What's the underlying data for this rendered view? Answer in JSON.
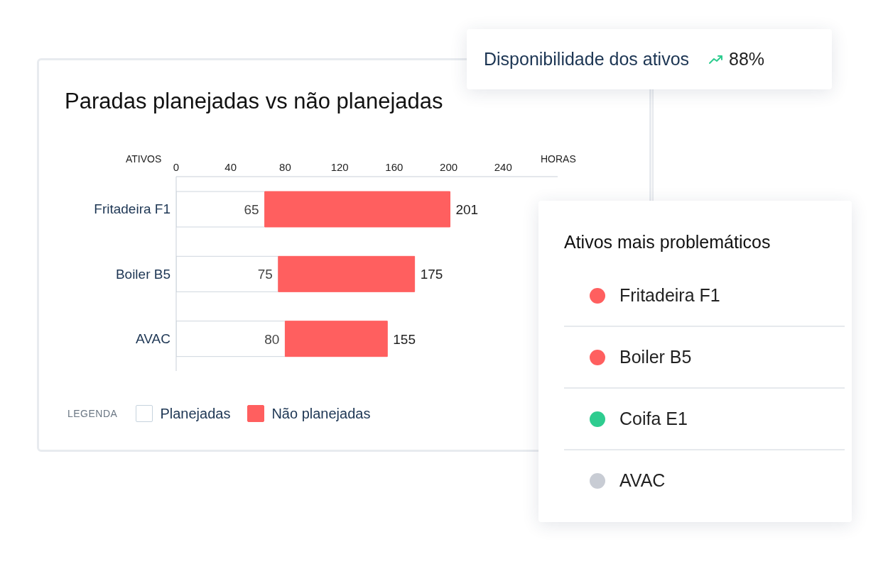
{
  "chart_data": [
    {
      "type": "bar",
      "title": "Paradas planejadas vs não planejadas",
      "orientation": "horizontal",
      "stacked": true,
      "categories": [
        "Fritadeira F1",
        "Boiler B5",
        "AVAC"
      ],
      "series": [
        {
          "name": "Planejadas",
          "color": "#ffffff",
          "values": [
            65,
            75,
            80
          ],
          "value_labels": [
            "65",
            "75",
            "80"
          ]
        },
        {
          "name": "Não planejadas",
          "color": "#ff5f5f",
          "values": [
            136,
            100,
            75
          ]
        }
      ],
      "totals": [
        "201",
        "175",
        "155"
      ],
      "xlabel": "HORAS",
      "ylabel": "ATIVOS",
      "legend_title": "LEGENDA",
      "legend": "bottom left",
      "xlim": [
        0,
        280
      ],
      "xticks": [
        0,
        40,
        80,
        120,
        160,
        200,
        240
      ],
      "grid": false
    },
    {
      "type": "other",
      "title": "Disponibilidade dos ativos",
      "annotations": [
        "88%"
      ]
    },
    {
      "type": "other",
      "title": "Ativos mais problemáticos",
      "categories": [
        "Fritadeira F1",
        "Boiler B5",
        "Coifa E1",
        "AVAC"
      ],
      "colors": [
        "#ff5f5f",
        "#ff5f5f",
        "#2ecc8f",
        "#c8ccd4"
      ]
    }
  ]
}
